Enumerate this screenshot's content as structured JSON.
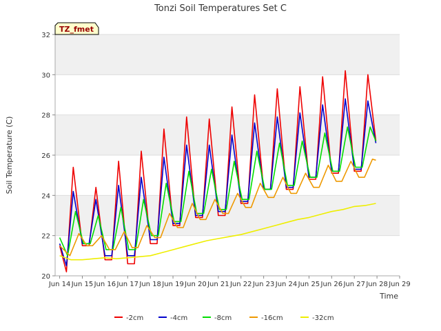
{
  "chart_data": {
    "type": "line",
    "title": "Tonzi Soil Temperatures Set C",
    "xlabel": "Time",
    "ylabel": "Soil Temperature (C)",
    "badge": "TZ_fmet",
    "xlim": [
      13.8,
      29
    ],
    "ylim": [
      20,
      32
    ],
    "yticks": [
      20,
      22,
      24,
      26,
      28,
      30,
      32
    ],
    "xticks": [
      {
        "x": 14,
        "label": "Jun 14"
      },
      {
        "x": 15,
        "label": "Jun 15"
      },
      {
        "x": 16,
        "label": "Jun 16"
      },
      {
        "x": 17,
        "label": "Jun 17"
      },
      {
        "x": 18,
        "label": "Jun 18"
      },
      {
        "x": 19,
        "label": "Jun 19"
      },
      {
        "x": 20,
        "label": "Jun 20"
      },
      {
        "x": 21,
        "label": "Jun 21"
      },
      {
        "x": 22,
        "label": "Jun 22"
      },
      {
        "x": 23,
        "label": "Jun 23"
      },
      {
        "x": 24,
        "label": "Jun 24"
      },
      {
        "x": 25,
        "label": "Jun 25"
      },
      {
        "x": 26,
        "label": "Jun 26"
      },
      {
        "x": 27,
        "label": "Jun 27"
      },
      {
        "x": 28,
        "label": "Jun 28"
      },
      {
        "x": 29,
        "label": "Jun 29"
      }
    ],
    "grid": true,
    "legend_position": "bottom",
    "series": [
      {
        "name": "-2cm",
        "color": "#ee0000",
        "points": [
          [
            14.0,
            21.5
          ],
          [
            14.3,
            20.2
          ],
          [
            14.6,
            25.4
          ],
          [
            15.0,
            21.5
          ],
          [
            15.3,
            21.5
          ],
          [
            15.6,
            24.4
          ],
          [
            16.0,
            20.8
          ],
          [
            16.3,
            20.8
          ],
          [
            16.6,
            25.7
          ],
          [
            17.0,
            20.6
          ],
          [
            17.3,
            20.6
          ],
          [
            17.6,
            26.2
          ],
          [
            18.0,
            21.6
          ],
          [
            18.3,
            21.6
          ],
          [
            18.6,
            27.3
          ],
          [
            19.0,
            22.5
          ],
          [
            19.3,
            22.5
          ],
          [
            19.6,
            27.9
          ],
          [
            20.0,
            22.9
          ],
          [
            20.3,
            22.9
          ],
          [
            20.6,
            27.8
          ],
          [
            21.0,
            23.0
          ],
          [
            21.3,
            23.0
          ],
          [
            21.6,
            28.4
          ],
          [
            22.0,
            23.6
          ],
          [
            22.3,
            23.6
          ],
          [
            22.6,
            29.0
          ],
          [
            23.0,
            24.3
          ],
          [
            23.3,
            24.3
          ],
          [
            23.6,
            29.3
          ],
          [
            24.0,
            24.3
          ],
          [
            24.3,
            24.3
          ],
          [
            24.6,
            29.4
          ],
          [
            25.0,
            24.8
          ],
          [
            25.3,
            24.8
          ],
          [
            25.6,
            29.9
          ],
          [
            26.0,
            25.1
          ],
          [
            26.3,
            25.1
          ],
          [
            26.6,
            30.2
          ],
          [
            27.0,
            25.2
          ],
          [
            27.3,
            25.2
          ],
          [
            27.6,
            30.0
          ],
          [
            27.95,
            26.7
          ]
        ]
      },
      {
        "name": "-4cm",
        "color": "#0000cc",
        "points": [
          [
            14.0,
            21.6
          ],
          [
            14.3,
            20.5
          ],
          [
            14.6,
            24.2
          ],
          [
            15.0,
            21.6
          ],
          [
            15.3,
            21.6
          ],
          [
            15.6,
            23.8
          ],
          [
            16.0,
            21.0
          ],
          [
            16.3,
            21.0
          ],
          [
            16.6,
            24.5
          ],
          [
            17.0,
            21.0
          ],
          [
            17.3,
            21.0
          ],
          [
            17.6,
            24.9
          ],
          [
            18.0,
            21.8
          ],
          [
            18.3,
            21.8
          ],
          [
            18.6,
            25.9
          ],
          [
            19.0,
            22.6
          ],
          [
            19.3,
            22.6
          ],
          [
            19.6,
            26.5
          ],
          [
            20.0,
            23.0
          ],
          [
            20.3,
            23.0
          ],
          [
            20.6,
            26.5
          ],
          [
            21.0,
            23.2
          ],
          [
            21.3,
            23.2
          ],
          [
            21.6,
            27.0
          ],
          [
            22.0,
            23.7
          ],
          [
            22.3,
            23.7
          ],
          [
            22.6,
            27.6
          ],
          [
            23.0,
            24.3
          ],
          [
            23.3,
            24.3
          ],
          [
            23.6,
            27.9
          ],
          [
            24.0,
            24.4
          ],
          [
            24.3,
            24.4
          ],
          [
            24.6,
            28.1
          ],
          [
            25.0,
            24.9
          ],
          [
            25.3,
            24.9
          ],
          [
            25.6,
            28.5
          ],
          [
            26.0,
            25.2
          ],
          [
            26.3,
            25.2
          ],
          [
            26.6,
            28.8
          ],
          [
            27.0,
            25.3
          ],
          [
            27.3,
            25.3
          ],
          [
            27.6,
            28.7
          ],
          [
            27.95,
            26.6
          ]
        ]
      },
      {
        "name": "-8cm",
        "color": "#00dd00",
        "points": [
          [
            14.0,
            21.9
          ],
          [
            14.35,
            21.0
          ],
          [
            14.7,
            23.2
          ],
          [
            15.05,
            21.6
          ],
          [
            15.35,
            21.6
          ],
          [
            15.7,
            23.0
          ],
          [
            16.05,
            21.3
          ],
          [
            16.35,
            21.3
          ],
          [
            16.7,
            23.4
          ],
          [
            17.05,
            21.3
          ],
          [
            17.35,
            21.3
          ],
          [
            17.7,
            23.8
          ],
          [
            18.05,
            22.0
          ],
          [
            18.35,
            22.0
          ],
          [
            18.7,
            24.6
          ],
          [
            19.05,
            22.7
          ],
          [
            19.35,
            22.7
          ],
          [
            19.7,
            25.2
          ],
          [
            20.05,
            23.1
          ],
          [
            20.35,
            23.1
          ],
          [
            20.7,
            25.3
          ],
          [
            21.05,
            23.3
          ],
          [
            21.35,
            23.3
          ],
          [
            21.7,
            25.7
          ],
          [
            22.05,
            23.8
          ],
          [
            22.35,
            23.8
          ],
          [
            22.7,
            26.2
          ],
          [
            23.05,
            24.3
          ],
          [
            23.35,
            24.3
          ],
          [
            23.7,
            26.6
          ],
          [
            24.05,
            24.5
          ],
          [
            24.35,
            24.5
          ],
          [
            24.7,
            26.7
          ],
          [
            25.05,
            24.9
          ],
          [
            25.35,
            24.9
          ],
          [
            25.7,
            27.1
          ],
          [
            26.05,
            25.2
          ],
          [
            26.35,
            25.2
          ],
          [
            26.7,
            27.4
          ],
          [
            27.05,
            25.4
          ],
          [
            27.35,
            25.4
          ],
          [
            27.7,
            27.4
          ],
          [
            27.95,
            26.7
          ]
        ]
      },
      {
        "name": "-16cm",
        "color": "#ee9900",
        "points": [
          [
            14.0,
            21.5
          ],
          [
            14.45,
            21.0
          ],
          [
            14.85,
            22.1
          ],
          [
            15.2,
            21.5
          ],
          [
            15.45,
            21.5
          ],
          [
            15.85,
            22.0
          ],
          [
            16.2,
            21.3
          ],
          [
            16.45,
            21.3
          ],
          [
            16.85,
            22.2
          ],
          [
            17.2,
            21.4
          ],
          [
            17.45,
            21.4
          ],
          [
            17.85,
            22.5
          ],
          [
            18.2,
            21.9
          ],
          [
            18.45,
            21.9
          ],
          [
            18.85,
            23.1
          ],
          [
            19.2,
            22.4
          ],
          [
            19.45,
            22.4
          ],
          [
            19.85,
            23.6
          ],
          [
            20.2,
            22.8
          ],
          [
            20.45,
            22.8
          ],
          [
            20.85,
            23.8
          ],
          [
            21.2,
            23.1
          ],
          [
            21.45,
            23.1
          ],
          [
            21.85,
            24.1
          ],
          [
            22.2,
            23.4
          ],
          [
            22.45,
            23.4
          ],
          [
            22.85,
            24.6
          ],
          [
            23.2,
            23.9
          ],
          [
            23.45,
            23.9
          ],
          [
            23.85,
            24.9
          ],
          [
            24.2,
            24.1
          ],
          [
            24.45,
            24.1
          ],
          [
            24.85,
            25.1
          ],
          [
            25.2,
            24.4
          ],
          [
            25.45,
            24.4
          ],
          [
            25.85,
            25.5
          ],
          [
            26.2,
            24.7
          ],
          [
            26.45,
            24.7
          ],
          [
            26.85,
            25.7
          ],
          [
            27.2,
            24.9
          ],
          [
            27.45,
            24.9
          ],
          [
            27.8,
            25.8
          ],
          [
            27.95,
            25.75
          ]
        ]
      },
      {
        "name": "-32cm",
        "color": "#eeee00",
        "points": [
          [
            14.0,
            21.0
          ],
          [
            14.5,
            20.8
          ],
          [
            15.0,
            20.8
          ],
          [
            15.5,
            20.85
          ],
          [
            16.0,
            20.9
          ],
          [
            16.5,
            20.85
          ],
          [
            17.0,
            20.9
          ],
          [
            17.5,
            20.95
          ],
          [
            18.0,
            21.0
          ],
          [
            18.5,
            21.15
          ],
          [
            19.0,
            21.3
          ],
          [
            19.5,
            21.45
          ],
          [
            20.0,
            21.6
          ],
          [
            20.5,
            21.75
          ],
          [
            21.0,
            21.85
          ],
          [
            21.5,
            21.95
          ],
          [
            22.0,
            22.05
          ],
          [
            22.5,
            22.2
          ],
          [
            23.0,
            22.35
          ],
          [
            23.5,
            22.5
          ],
          [
            24.0,
            22.65
          ],
          [
            24.5,
            22.8
          ],
          [
            25.0,
            22.9
          ],
          [
            25.5,
            23.05
          ],
          [
            26.0,
            23.2
          ],
          [
            26.5,
            23.3
          ],
          [
            27.0,
            23.45
          ],
          [
            27.5,
            23.5
          ],
          [
            27.95,
            23.6
          ]
        ]
      }
    ]
  }
}
